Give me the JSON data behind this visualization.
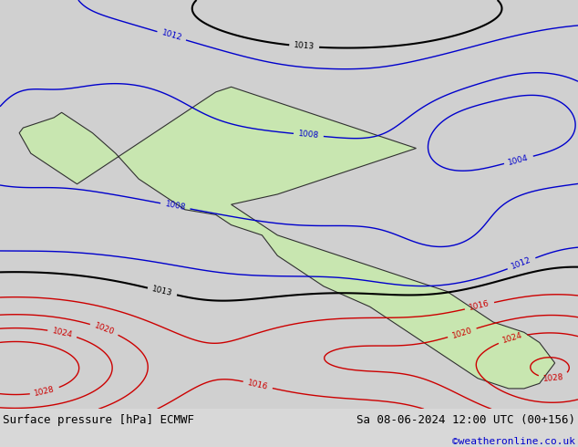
{
  "title_left": "Surface pressure [hPa] ECMWF",
  "title_right": "Sa 08-06-2024 12:00 UTC (00+156)",
  "copyright": "©weatheronline.co.uk",
  "bg_color": "#d0d0d0",
  "land_color": "#c8e6b0",
  "border_color": "#808080",
  "coast_color": "#303030",
  "isobar_black_color": "#000000",
  "isobar_red_color": "#cc0000",
  "isobar_blue_color": "#0000cc",
  "label_fontsize": 6.5,
  "footer_fontsize": 9.0,
  "copyright_color": "#0000cc",
  "map_lon_min": -20,
  "map_lon_max": 55,
  "map_lat_min": -40,
  "map_lat_max": 40,
  "fig_bg": "#d8d8d8",
  "footer_bg": "#e0e0e0"
}
